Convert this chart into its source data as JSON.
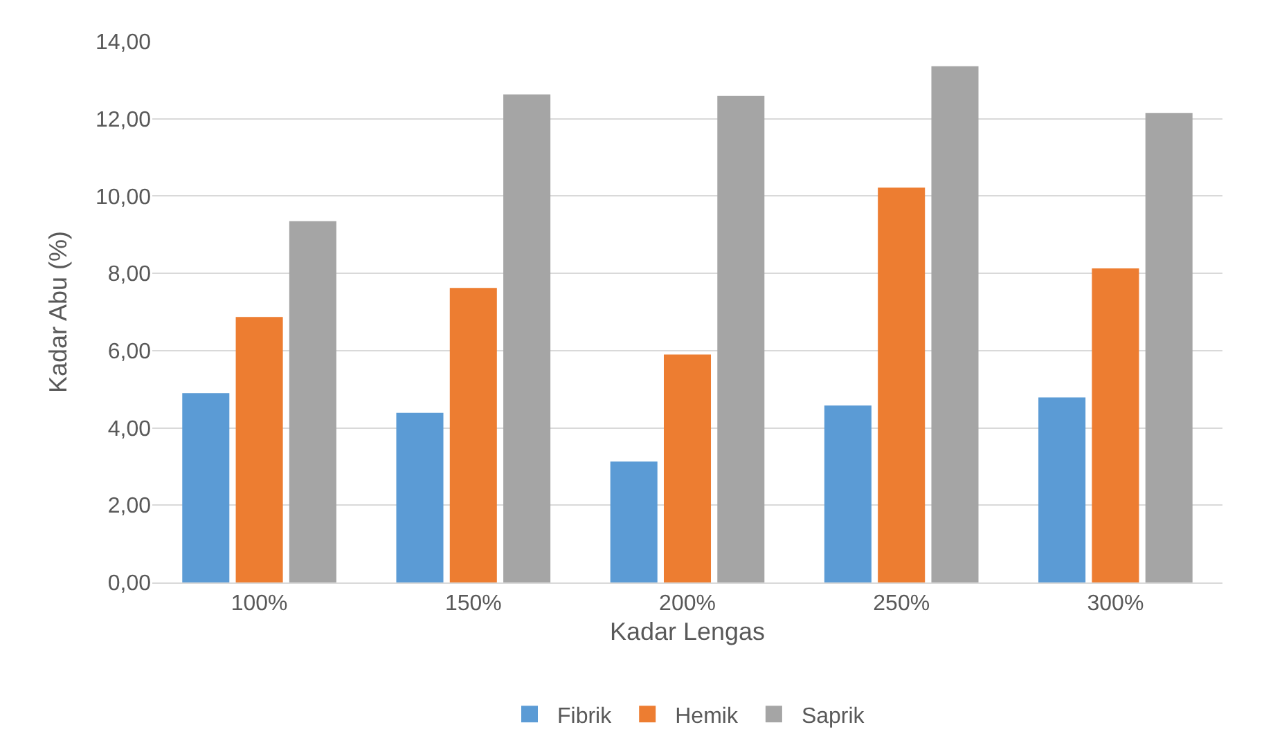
{
  "chart_data": {
    "type": "bar",
    "xlabel": "Kadar Lengas",
    "ylabel": "Kadar Abu (%)",
    "categories": [
      "100%",
      "150%",
      "200%",
      "250%",
      "300%"
    ],
    "series": [
      {
        "name": "Fibrik",
        "color": "#5b9bd5",
        "values": [
          4.9,
          4.39,
          3.13,
          4.58,
          4.79
        ]
      },
      {
        "name": "Hemik",
        "color": "#ed7d31",
        "values": [
          6.87,
          7.62,
          5.9,
          10.22,
          8.13
        ]
      },
      {
        "name": "Saprik",
        "color": "#a5a5a5",
        "values": [
          9.35,
          12.63,
          12.59,
          13.36,
          12.15
        ]
      }
    ],
    "ylim": [
      0,
      14
    ],
    "yticks": [
      {
        "value": 0,
        "label": "0,00"
      },
      {
        "value": 2,
        "label": "2,00"
      },
      {
        "value": 4,
        "label": "4,00"
      },
      {
        "value": 6,
        "label": "6,00"
      },
      {
        "value": 8,
        "label": "8,00"
      },
      {
        "value": 10,
        "label": "10,00"
      },
      {
        "value": 12,
        "label": "12,00"
      },
      {
        "value": 14,
        "label": "14,00"
      }
    ],
    "grid": "y",
    "legend": "bottom"
  }
}
